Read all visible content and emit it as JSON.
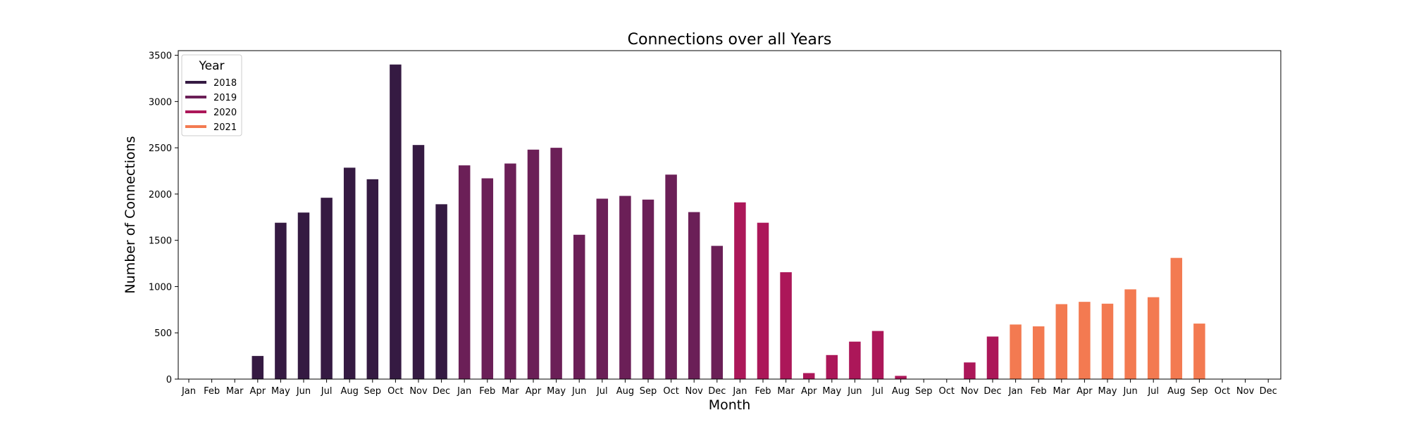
{
  "chart_data": {
    "type": "bar",
    "title": "Connections over all Years",
    "xlabel": "Month",
    "ylabel": "Number of Connections",
    "ylim": [
      0,
      3550
    ],
    "yticks": [
      0,
      500,
      1000,
      1500,
      2000,
      2500,
      3000,
      3500
    ],
    "ytick_labels": [
      "0",
      "500",
      "1000",
      "1500",
      "2000",
      "2500",
      "3000",
      "3500"
    ],
    "grid": false,
    "legend": {
      "title": "Year",
      "placement": "upper-left",
      "entries": [
        "2018",
        "2019",
        "2020",
        "2021"
      ]
    },
    "series": [
      {
        "name": "2018",
        "color": "#351a42",
        "categories": [
          "Jan",
          "Feb",
          "Mar",
          "Apr",
          "May",
          "Jun",
          "Jul",
          "Aug",
          "Sep",
          "Oct",
          "Nov",
          "Dec"
        ],
        "values": [
          0,
          0,
          0,
          250,
          1690,
          1800,
          1960,
          2285,
          2160,
          3400,
          2530,
          1890
        ]
      },
      {
        "name": "2019",
        "color": "#6b1f57",
        "categories": [
          "Jan",
          "Feb",
          "Mar",
          "Apr",
          "May",
          "Jun",
          "Jul",
          "Aug",
          "Sep",
          "Oct",
          "Nov",
          "Dec"
        ],
        "values": [
          2310,
          2170,
          2330,
          2480,
          2500,
          1560,
          1950,
          1980,
          1940,
          2210,
          1805,
          1440
        ]
      },
      {
        "name": "2020",
        "color": "#ac1759",
        "categories": [
          "Jan",
          "Feb",
          "Mar",
          "Apr",
          "May",
          "Jun",
          "Jul",
          "Aug",
          "Sep",
          "Oct",
          "Nov",
          "Dec"
        ],
        "values": [
          1910,
          1690,
          1155,
          65,
          260,
          405,
          520,
          35,
          0,
          0,
          180,
          460
        ]
      },
      {
        "name": "2021",
        "color": "#f37a51",
        "categories": [
          "Jan",
          "Feb",
          "Mar",
          "Apr",
          "May",
          "Jun",
          "Jul",
          "Aug",
          "Sep",
          "Oct",
          "Nov",
          "Dec"
        ],
        "values": [
          590,
          570,
          810,
          835,
          815,
          970,
          885,
          1310,
          600,
          0,
          0,
          0
        ]
      }
    ]
  }
}
